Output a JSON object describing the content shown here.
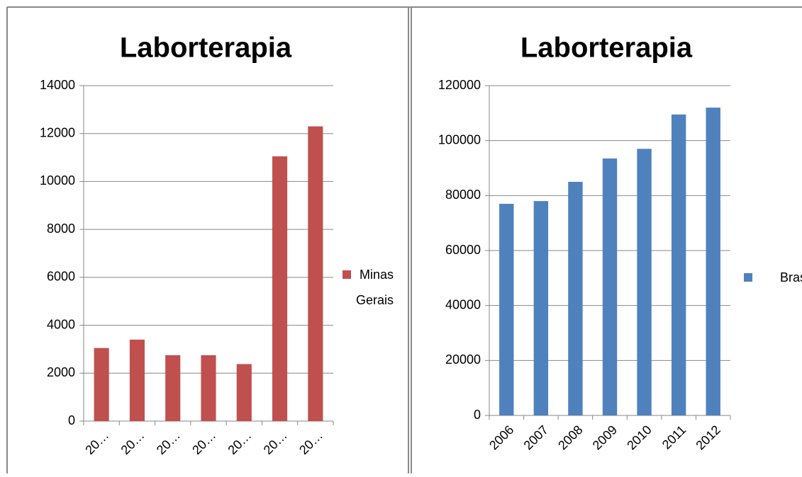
{
  "chart_data": [
    {
      "type": "bar",
      "title": "Laborterapia",
      "categories": [
        "20…",
        "20…",
        "20…",
        "20…",
        "20…",
        "20…",
        "20…"
      ],
      "series": [
        {
          "name": "Minas Gerais",
          "color": "#c0504d",
          "values": [
            3050,
            3400,
            2750,
            2750,
            2380,
            11050,
            12300
          ]
        }
      ],
      "ylim": [
        0,
        14000
      ],
      "yticks": [
        0,
        2000,
        4000,
        6000,
        8000,
        10000,
        12000,
        14000
      ],
      "grid": true,
      "legend": "right"
    },
    {
      "type": "bar",
      "title": "Laborterapia",
      "categories": [
        "2006",
        "2007",
        "2008",
        "2009",
        "2010",
        "2011",
        "2012"
      ],
      "series": [
        {
          "name": "Brasil",
          "color": "#4f81bd",
          "values": [
            77000,
            78000,
            85000,
            93500,
            97000,
            109500,
            112000
          ]
        }
      ],
      "ylim": [
        0,
        120000
      ],
      "yticks": [
        0,
        20000,
        40000,
        60000,
        80000,
        100000,
        120000
      ],
      "grid": true,
      "legend": "right"
    }
  ]
}
